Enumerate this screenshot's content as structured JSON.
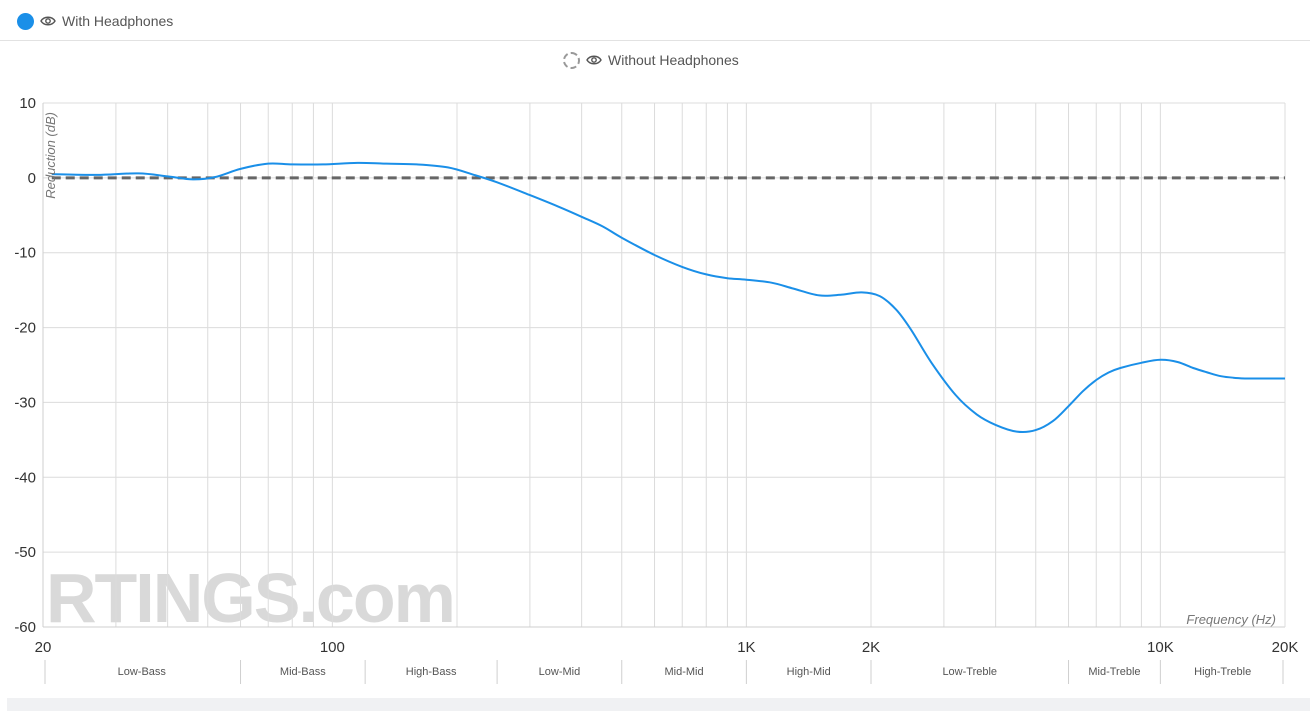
{
  "legend": [
    {
      "label": "With Headphones",
      "color": "#1a8fe8",
      "icon": "eye-icon",
      "style": "solid"
    },
    {
      "label": "Without Headphones",
      "color": "#999999",
      "icon": "eye-icon",
      "style": "dashed"
    }
  ],
  "chart_data": {
    "type": "line",
    "title": "",
    "xlabel": "Frequency (Hz)",
    "ylabel": "Reduction (dB)",
    "xscale": "log",
    "xlim": [
      20,
      20000
    ],
    "ylim": [
      -60,
      10
    ],
    "yticks": [
      10,
      0,
      -10,
      -20,
      -30,
      -40,
      -50,
      -60
    ],
    "xtick_labels": [
      {
        "value": 20,
        "label": "20"
      },
      {
        "value": 100,
        "label": "100"
      },
      {
        "value": 1000,
        "label": "1K"
      },
      {
        "value": 2000,
        "label": "2K"
      },
      {
        "value": 10000,
        "label": "10K"
      },
      {
        "value": 20000,
        "label": "20K"
      }
    ],
    "grid": true,
    "bands": [
      {
        "label": "Low-Bass",
        "from": 20,
        "to": 60
      },
      {
        "label": "Mid-Bass",
        "from": 60,
        "to": 120
      },
      {
        "label": "High-Bass",
        "from": 120,
        "to": 250
      },
      {
        "label": "Low-Mid",
        "from": 250,
        "to": 500
      },
      {
        "label": "Mid-Mid",
        "from": 500,
        "to": 1000
      },
      {
        "label": "High-Mid",
        "from": 1000,
        "to": 2000
      },
      {
        "label": "Low-Treble",
        "from": 2000,
        "to": 6000
      },
      {
        "label": "Mid-Treble",
        "from": 6000,
        "to": 10000
      },
      {
        "label": "High-Treble",
        "from": 10000,
        "to": 20000
      }
    ],
    "series": [
      {
        "name": "With Headphones",
        "color": "#1a8fe8",
        "x": [
          21,
          27,
          34,
          40,
          46,
          52,
          60,
          70,
          80,
          95,
          115,
          135,
          160,
          190,
          220,
          250,
          300,
          350,
          400,
          450,
          500,
          600,
          700,
          800,
          900,
          1000,
          1150,
          1300,
          1500,
          1700,
          1900,
          2100,
          2300,
          2500,
          2800,
          3200,
          3600,
          4000,
          4500,
          5000,
          5500,
          6000,
          6500,
          7000,
          7500,
          8000,
          9000,
          10000,
          11000,
          12000,
          13000,
          14000,
          15000,
          16000,
          17000,
          18000,
          20000
        ],
        "y": [
          0.5,
          0.4,
          0.6,
          0.2,
          -0.2,
          0.1,
          1.2,
          1.9,
          1.8,
          1.8,
          2.0,
          1.9,
          1.8,
          1.4,
          0.4,
          -0.6,
          -2.3,
          -3.8,
          -5.2,
          -6.5,
          -8.0,
          -10.3,
          -11.9,
          -12.9,
          -13.4,
          -13.6,
          -14.0,
          -14.8,
          -15.7,
          -15.6,
          -15.3,
          -15.8,
          -17.6,
          -20.3,
          -24.7,
          -29.0,
          -31.6,
          -33.0,
          -33.9,
          -33.7,
          -32.5,
          -30.5,
          -28.5,
          -27.0,
          -26.0,
          -25.4,
          -24.7,
          -24.3,
          -24.6,
          -25.4,
          -26.0,
          -26.5,
          -26.7,
          -26.8,
          -26.8,
          -26.8,
          -26.8
        ]
      },
      {
        "name": "Without Headphones",
        "color": "#666666",
        "x": [
          21,
          20000
        ],
        "y": [
          0,
          0
        ]
      }
    ],
    "watermark": "RTINGS.com"
  }
}
